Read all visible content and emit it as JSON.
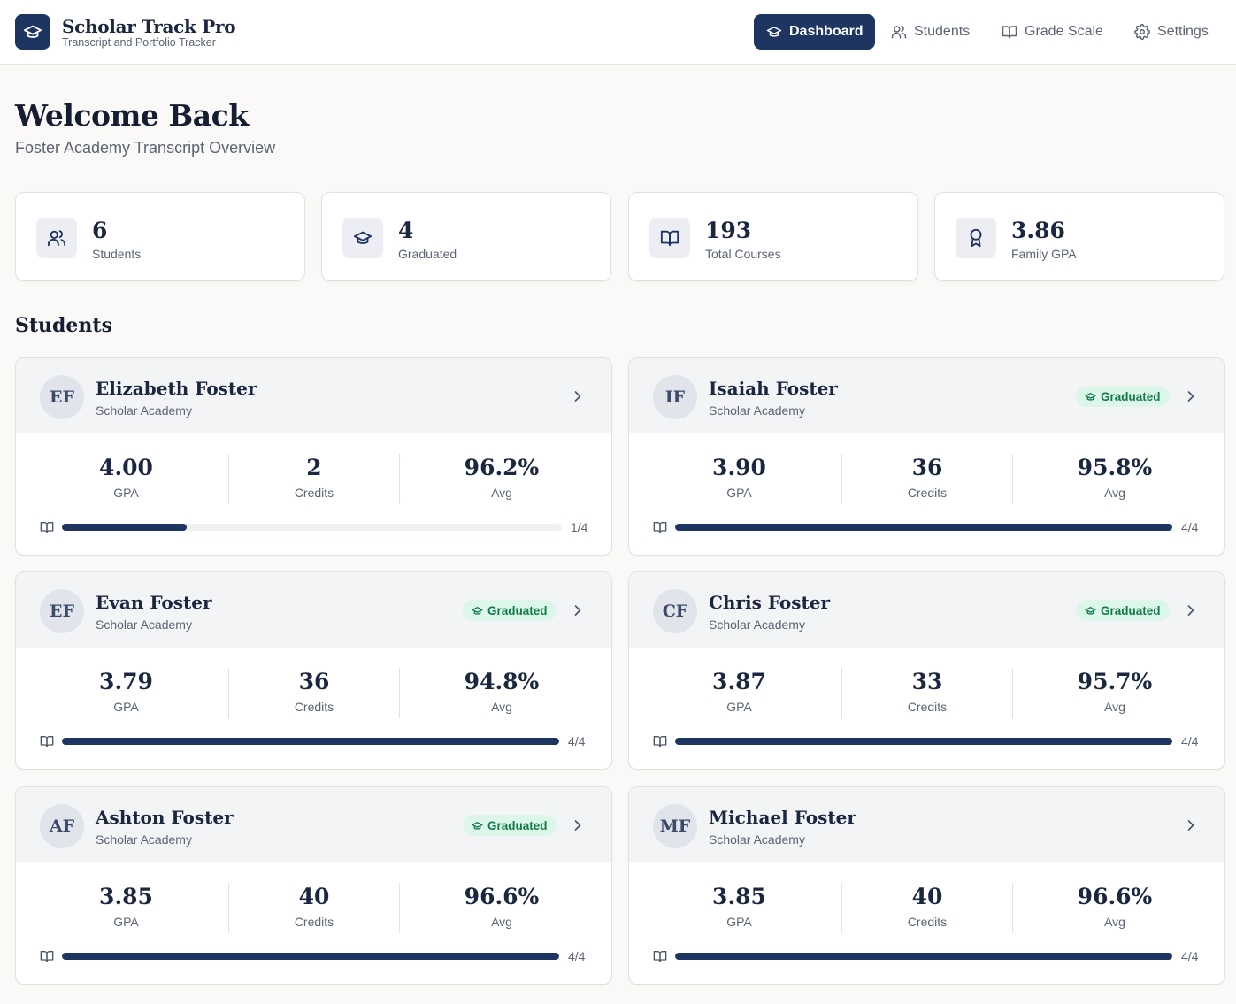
{
  "header": {
    "app_title": "Scholar Track Pro",
    "app_subtitle": "Transcript and Portfolio Tracker",
    "nav": [
      {
        "label": "Dashboard",
        "icon": "graduation-cap-icon",
        "active": true
      },
      {
        "label": "Students",
        "icon": "users-icon",
        "active": false
      },
      {
        "label": "Grade Scale",
        "icon": "book-open-icon",
        "active": false
      },
      {
        "label": "Settings",
        "icon": "gear-icon",
        "active": false
      }
    ]
  },
  "welcome": {
    "title": "Welcome Back",
    "subtitle": "Foster Academy Transcript Overview"
  },
  "stats": [
    {
      "value": "6",
      "label": "Students",
      "icon": "users-icon"
    },
    {
      "value": "4",
      "label": "Graduated",
      "icon": "graduation-cap-icon"
    },
    {
      "value": "193",
      "label": "Total Courses",
      "icon": "book-open-icon"
    },
    {
      "value": "3.86",
      "label": "Family GPA",
      "icon": "award-icon"
    }
  ],
  "students_section": {
    "title": "Students",
    "gpa_label": "GPA",
    "credits_label": "Credits",
    "avg_label": "Avg",
    "graduated_label": "Graduated"
  },
  "students": [
    {
      "initials": "EF",
      "name": "Elizabeth Foster",
      "school": "Scholar Academy",
      "graduated": false,
      "gpa": "4.00",
      "credits": "2",
      "avg": "96.2%",
      "progress_text": "1/4",
      "progress": 0.25
    },
    {
      "initials": "IF",
      "name": "Isaiah Foster",
      "school": "Scholar Academy",
      "graduated": true,
      "gpa": "3.90",
      "credits": "36",
      "avg": "95.8%",
      "progress_text": "4/4",
      "progress": 1.0
    },
    {
      "initials": "EF",
      "name": "Evan Foster",
      "school": "Scholar Academy",
      "graduated": true,
      "gpa": "3.79",
      "credits": "36",
      "avg": "94.8%",
      "progress_text": "4/4",
      "progress": 1.0
    },
    {
      "initials": "CF",
      "name": "Chris Foster",
      "school": "Scholar Academy",
      "graduated": true,
      "gpa": "3.87",
      "credits": "33",
      "avg": "95.7%",
      "progress_text": "4/4",
      "progress": 1.0
    },
    {
      "initials": "AF",
      "name": "Ashton Foster",
      "school": "Scholar Academy",
      "graduated": true,
      "gpa": "3.85",
      "credits": "40",
      "avg": "96.6%",
      "progress_text": "4/4",
      "progress": 1.0
    },
    {
      "initials": "MF",
      "name": "Michael Foster",
      "school": "Scholar Academy",
      "graduated": false,
      "gpa": "3.85",
      "credits": "40",
      "avg": "96.6%",
      "progress_text": "4/4",
      "progress": 1.0
    }
  ],
  "colors": {
    "primary": "#1e3461",
    "background": "#faf9f7",
    "badge_bg": "#dcf7e9",
    "badge_text": "#127a4a",
    "muted_text": "#5b6473"
  }
}
